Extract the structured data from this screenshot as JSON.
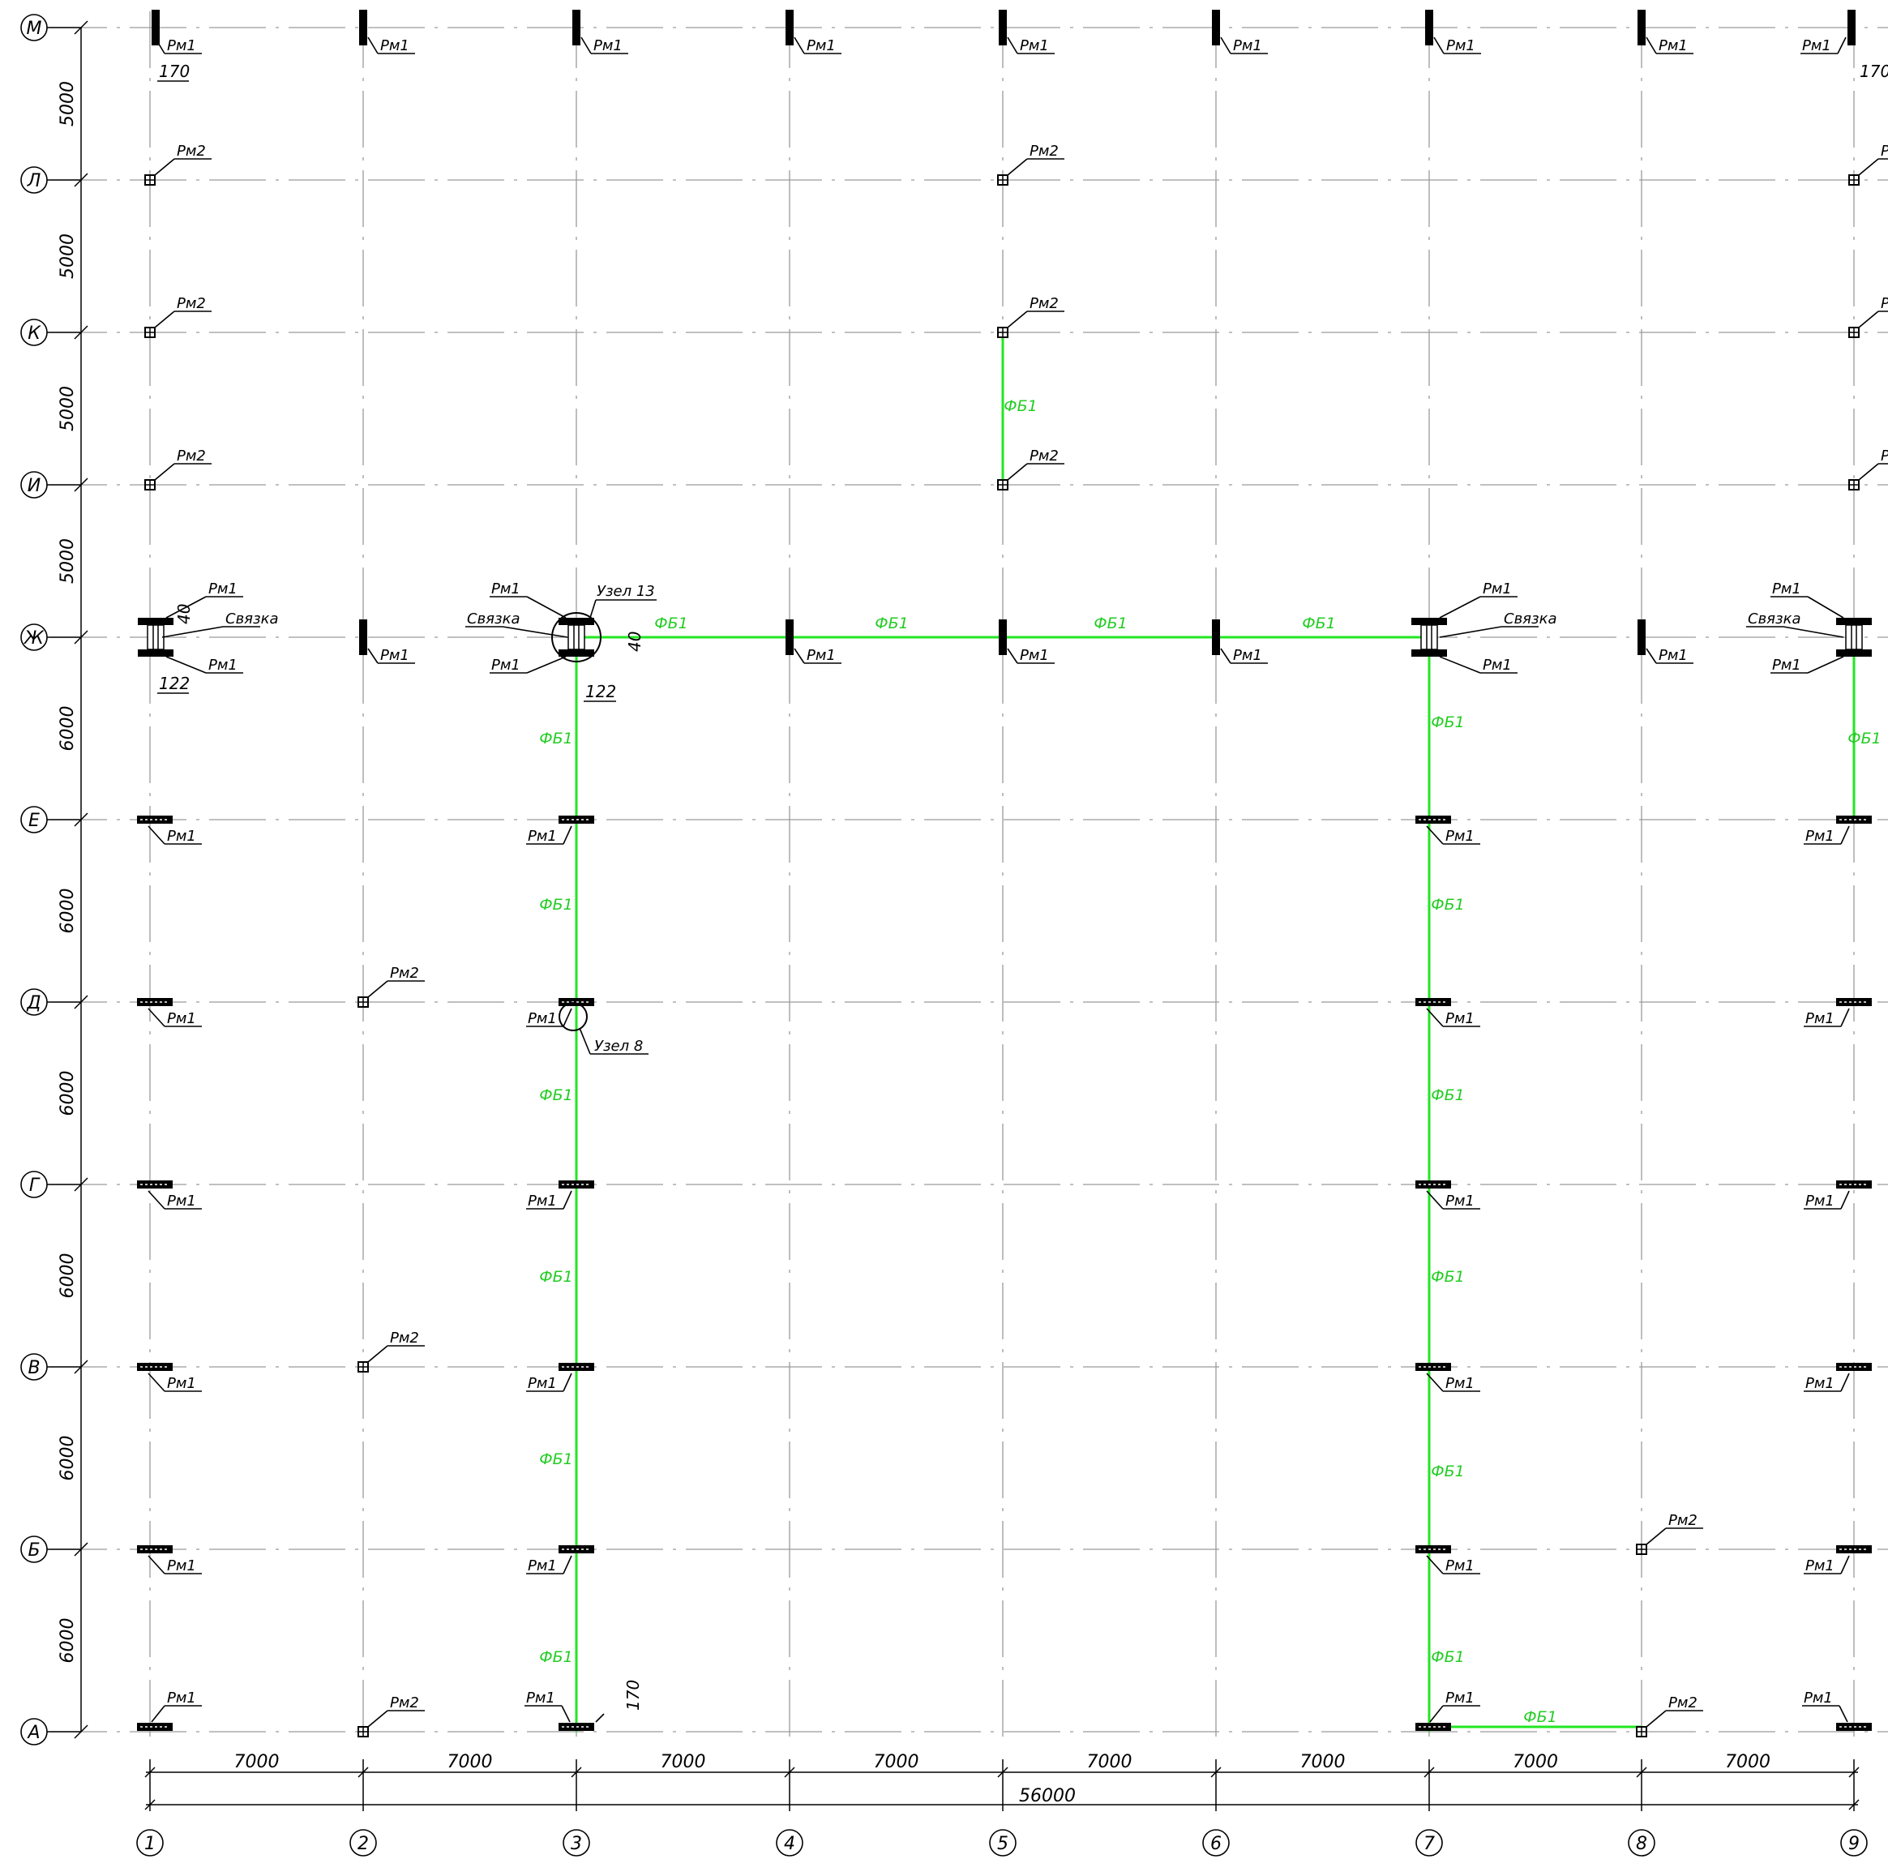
{
  "axes": {
    "cols": [
      "1",
      "2",
      "3",
      "4",
      "5",
      "6",
      "7",
      "8",
      "9"
    ],
    "rows": [
      "М",
      "Л",
      "К",
      "И",
      "Ж",
      "Е",
      "Д",
      "Г",
      "В",
      "Б",
      "А"
    ]
  },
  "dimensions": {
    "horizontal": [
      "7000",
      "7000",
      "7000",
      "7000",
      "7000",
      "7000",
      "7000",
      "7000"
    ],
    "overall": "56000",
    "vertical": [
      "5000",
      "5000",
      "5000",
      "5000",
      "6000",
      "6000",
      "6000",
      "6000",
      "6000",
      "6000"
    ]
  },
  "marks": {
    "rm1": "Рм1",
    "rm2": "Рм2",
    "fb1": "ФБ1",
    "brace": "Связка"
  },
  "nodes": {
    "node13": "Узел 13",
    "node8": "Узел 8"
  },
  "notes": {
    "d170": "170",
    "d122": "122",
    "d40": "40"
  },
  "colors": {
    "beam": "#22e622",
    "grid": "#9a9a9a",
    "ink": "#000000"
  }
}
